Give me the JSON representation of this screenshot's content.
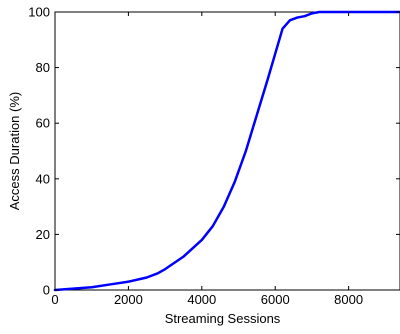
{
  "chart_data": {
    "type": "line",
    "title": "",
    "xlabel": "Streaming Sessions",
    "ylabel": "Access Duration (%)",
    "xlim": [
      0,
      9400
    ],
    "ylim": [
      0,
      100
    ],
    "x_ticks": [
      0,
      2000,
      4000,
      6000,
      8000
    ],
    "y_ticks": [
      0,
      20,
      40,
      60,
      80,
      100
    ],
    "x_tick_labels": [
      "0",
      "2000",
      "4000",
      "6000",
      "8000"
    ],
    "y_tick_labels": [
      "0",
      "20",
      "40",
      "60",
      "80",
      "100"
    ],
    "grid": false,
    "legend": "none",
    "series": [
      {
        "color": "#0000ff",
        "x": [
          0,
          500,
          1000,
          1500,
          2000,
          2500,
          2800,
          3000,
          3500,
          4000,
          4300,
          4600,
          4900,
          5200,
          5500,
          5800,
          6000,
          6200,
          6400,
          6600,
          6800,
          7000,
          7200,
          7500,
          8000,
          9000,
          9400
        ],
        "y": [
          0,
          0.5,
          1,
          2,
          3,
          4.5,
          6,
          7.5,
          12,
          18,
          23,
          30,
          39,
          50,
          63,
          76,
          85,
          94,
          97,
          98,
          98.5,
          99.5,
          100,
          100,
          100,
          100,
          100
        ]
      }
    ]
  }
}
